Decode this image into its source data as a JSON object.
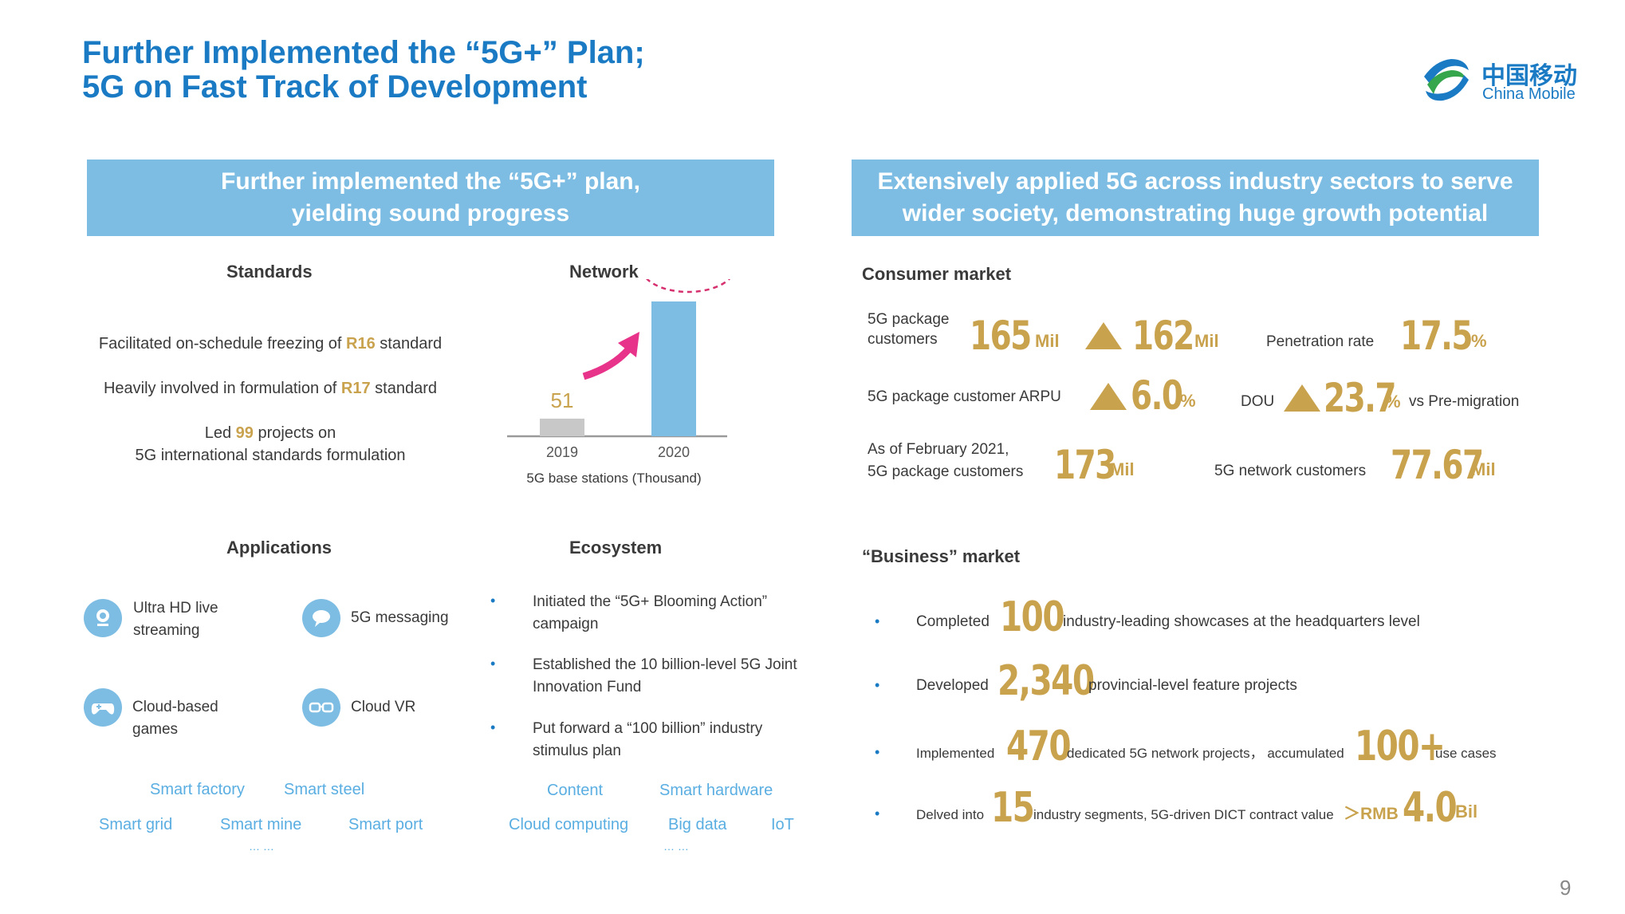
{
  "title": {
    "line1": "Further Implemented the “5G+” Plan;",
    "line2": "5G on Fast Track of Development"
  },
  "logo": {
    "cn": "中国移动",
    "en": "China Mobile",
    "icon": "china-mobile-logo"
  },
  "left_banner": {
    "line1": "Further implemented the “5G+” plan,",
    "line2": "yielding sound progress"
  },
  "right_banner": {
    "line1": "Extensively applied 5G across industry sectors to serve",
    "line2": "wider society, demonstrating huge growth potential"
  },
  "standards": {
    "heading": "Standards",
    "item1": {
      "pre": "Facilitated on-schedule freezing of ",
      "hl": "R16",
      "post": " standard"
    },
    "item2": {
      "pre": "Heavily involved in formulation of ",
      "hl": "R17",
      "post": " standard"
    },
    "item3": {
      "pre": "Led ",
      "hl": "99",
      "post": " projects on",
      "line2": "5G international standards formulation"
    }
  },
  "network": {
    "heading": "Network",
    "caption": "5G base stations  (Thousand)"
  },
  "chart_data": {
    "type": "bar",
    "categories": [
      "2019",
      "2020"
    ],
    "values": [
      51,
      390
    ],
    "xlabel": "5G base stations  (Thousand)",
    "ylim": [
      0,
      450
    ],
    "colors": [
      "#c8c8c8",
      "#7dbde3"
    ]
  },
  "applications": {
    "heading": "Applications",
    "items": [
      {
        "label1": "Ultra HD live",
        "label2": "streaming",
        "icon": "live-streaming-icon"
      },
      {
        "label1": "5G messaging",
        "label2": "",
        "icon": "message-bubble-icon"
      },
      {
        "label1": "Cloud-based",
        "label2": "games",
        "icon": "gamepad-icon"
      },
      {
        "label1": "Cloud VR",
        "label2": "",
        "icon": "vr-glasses-icon"
      }
    ],
    "tags_row1": [
      "Smart factory",
      "Smart steel"
    ],
    "tags_row2": [
      "Smart grid",
      "Smart mine",
      "Smart port"
    ],
    "ellipsis": "… …"
  },
  "ecosystem": {
    "heading": "Ecosystem",
    "bullets": [
      {
        "l1": "Initiated the “5G+ Blooming Action”",
        "l2": "campaign"
      },
      {
        "l1": "Established the 10 billion-level 5G Joint",
        "l2": "Innovation Fund"
      },
      {
        "l1": "Put forward a “100 billion” industry",
        "l2": "stimulus plan"
      }
    ],
    "tags_row1": [
      "Content",
      "Smart hardware"
    ],
    "tags_row2": [
      "Cloud computing",
      "Big data",
      "IoT"
    ],
    "ellipsis": "… …"
  },
  "consumer": {
    "heading": "Consumer market",
    "pkg_label1": "5G package",
    "pkg_label2": "customers",
    "pkg_value": "165",
    "pkg_unit": "Mil",
    "pkg_inc": "162",
    "pkg_inc_unit": "Mil",
    "pen_label": "Penetration rate",
    "pen_value": "17.5",
    "pen_unit": "%",
    "arpu_label": "5G package customer ARPU",
    "arpu_value": "6.0",
    "arpu_unit": "%",
    "dou_label": "DOU",
    "dou_value": "23.7",
    "dou_unit": "%",
    "dou_suffix": "vs  Pre-migration",
    "feb_label1": "As of February 2021,",
    "feb_label2": "5G package customers",
    "feb_value": "173",
    "feb_unit": "Mil",
    "net_label": "5G network customers",
    "net_value": "77.67",
    "net_unit": "Mil"
  },
  "business": {
    "heading": "“Business”  market",
    "b1": {
      "pre": "Completed",
      "num": "100",
      "post": "industry-leading showcases at the headquarters level"
    },
    "b2": {
      "pre": "Developed",
      "num": "2,340",
      "post": "provincial-level feature projects"
    },
    "b3": {
      "pre": "Implemented",
      "num": "470",
      "mid": "dedicated 5G network projects，  accumulated",
      "num2": "100+",
      "post": "use cases"
    },
    "b4": {
      "pre": "Delved into",
      "num": "15",
      "mid": "industry segments, 5G-driven DICT contract value",
      "pre2": "＞RMB",
      "num2": "4.0",
      "unit": "Bil"
    }
  },
  "page_number": "9"
}
